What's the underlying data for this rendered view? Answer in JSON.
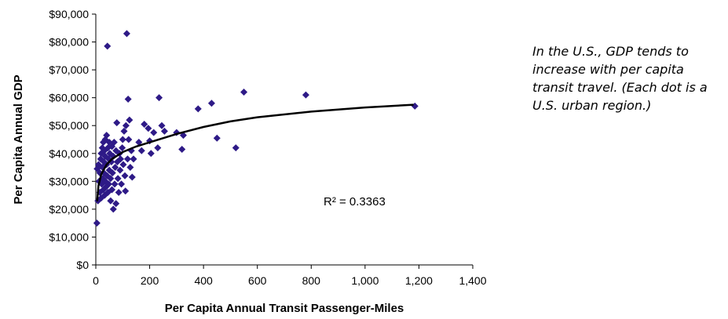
{
  "chart_data": {
    "type": "scatter",
    "xlabel": "Per Capita Annual Transit Passenger-Miles",
    "ylabel": "Per Capita Annual GDP",
    "xlim": [
      0,
      1400
    ],
    "ylim": [
      0,
      90000
    ],
    "x_ticks": [
      "0",
      "200",
      "400",
      "600",
      "800",
      "1,000",
      "1,200",
      "1,400"
    ],
    "y_ticks": [
      "$0",
      "$10,000",
      "$20,000",
      "$30,000",
      "$40,000",
      "$50,000",
      "$60,000",
      "$70,000",
      "$80,000",
      "$90,000"
    ],
    "grid": false,
    "marker_color": "#2E1A87",
    "trendline": {
      "type": "logarithmic",
      "x": [
        5,
        10,
        20,
        40,
        60,
        100,
        150,
        200,
        300,
        400,
        500,
        600,
        800,
        1000,
        1180
      ],
      "y": [
        22800,
        28500,
        32500,
        36000,
        38000,
        40500,
        42500,
        44000,
        47000,
        49500,
        51500,
        53000,
        55000,
        56500,
        57500
      ]
    },
    "r2_label": "R² = 0.3363",
    "points": [
      {
        "x": 4,
        "y": 15000
      },
      {
        "x": 8,
        "y": 23000
      },
      {
        "x": 5,
        "y": 34500
      },
      {
        "x": 10,
        "y": 36000
      },
      {
        "x": 12,
        "y": 30000
      },
      {
        "x": 15,
        "y": 26000
      },
      {
        "x": 15,
        "y": 33000
      },
      {
        "x": 18,
        "y": 38000
      },
      {
        "x": 20,
        "y": 40000
      },
      {
        "x": 20,
        "y": 24000
      },
      {
        "x": 22,
        "y": 29000
      },
      {
        "x": 24,
        "y": 42000
      },
      {
        "x": 25,
        "y": 35000
      },
      {
        "x": 26,
        "y": 31000
      },
      {
        "x": 28,
        "y": 44000
      },
      {
        "x": 28,
        "y": 27000
      },
      {
        "x": 30,
        "y": 37000
      },
      {
        "x": 30,
        "y": 33000
      },
      {
        "x": 32,
        "y": 41000
      },
      {
        "x": 33,
        "y": 25000
      },
      {
        "x": 35,
        "y": 45000
      },
      {
        "x": 35,
        "y": 39000
      },
      {
        "x": 36,
        "y": 30000
      },
      {
        "x": 38,
        "y": 28000
      },
      {
        "x": 40,
        "y": 46500
      },
      {
        "x": 40,
        "y": 36000
      },
      {
        "x": 42,
        "y": 32000
      },
      {
        "x": 43,
        "y": 78500
      },
      {
        "x": 45,
        "y": 42000
      },
      {
        "x": 45,
        "y": 26000
      },
      {
        "x": 48,
        "y": 38000
      },
      {
        "x": 48,
        "y": 29000
      },
      {
        "x": 50,
        "y": 44000
      },
      {
        "x": 50,
        "y": 34000
      },
      {
        "x": 52,
        "y": 40000
      },
      {
        "x": 55,
        "y": 31000
      },
      {
        "x": 55,
        "y": 23000
      },
      {
        "x": 58,
        "y": 37000
      },
      {
        "x": 60,
        "y": 42500
      },
      {
        "x": 60,
        "y": 27000
      },
      {
        "x": 62,
        "y": 33000
      },
      {
        "x": 65,
        "y": 39000
      },
      {
        "x": 65,
        "y": 20000
      },
      {
        "x": 68,
        "y": 44000
      },
      {
        "x": 70,
        "y": 29000
      },
      {
        "x": 72,
        "y": 35000
      },
      {
        "x": 75,
        "y": 41000
      },
      {
        "x": 75,
        "y": 22000
      },
      {
        "x": 78,
        "y": 51000
      },
      {
        "x": 80,
        "y": 37000
      },
      {
        "x": 82,
        "y": 31000
      },
      {
        "x": 85,
        "y": 26000
      },
      {
        "x": 88,
        "y": 40000
      },
      {
        "x": 90,
        "y": 34000
      },
      {
        "x": 92,
        "y": 38000
      },
      {
        "x": 95,
        "y": 29000
      },
      {
        "x": 98,
        "y": 42000
      },
      {
        "x": 100,
        "y": 45000
      },
      {
        "x": 102,
        "y": 36000
      },
      {
        "x": 105,
        "y": 48000
      },
      {
        "x": 108,
        "y": 32000
      },
      {
        "x": 110,
        "y": 26500
      },
      {
        "x": 112,
        "y": 50000
      },
      {
        "x": 115,
        "y": 83000
      },
      {
        "x": 118,
        "y": 38000
      },
      {
        "x": 120,
        "y": 59500
      },
      {
        "x": 122,
        "y": 45000
      },
      {
        "x": 125,
        "y": 52000
      },
      {
        "x": 128,
        "y": 35000
      },
      {
        "x": 132,
        "y": 41000
      },
      {
        "x": 135,
        "y": 31500
      },
      {
        "x": 140,
        "y": 38000
      },
      {
        "x": 160,
        "y": 44000
      },
      {
        "x": 170,
        "y": 41000
      },
      {
        "x": 180,
        "y": 50500
      },
      {
        "x": 195,
        "y": 49000
      },
      {
        "x": 200,
        "y": 44500
      },
      {
        "x": 205,
        "y": 40000
      },
      {
        "x": 215,
        "y": 47500
      },
      {
        "x": 230,
        "y": 42000
      },
      {
        "x": 235,
        "y": 60000
      },
      {
        "x": 245,
        "y": 50000
      },
      {
        "x": 255,
        "y": 48000
      },
      {
        "x": 300,
        "y": 47500
      },
      {
        "x": 320,
        "y": 41500
      },
      {
        "x": 325,
        "y": 46500
      },
      {
        "x": 380,
        "y": 56000
      },
      {
        "x": 430,
        "y": 58000
      },
      {
        "x": 450,
        "y": 45500
      },
      {
        "x": 520,
        "y": 42000
      },
      {
        "x": 550,
        "y": 62000
      },
      {
        "x": 780,
        "y": 61000
      },
      {
        "x": 1185,
        "y": 57000
      }
    ]
  },
  "annotation": {
    "text": "In the U.S., GDP tends to increase with per capita transit travel. (Each dot is a U.S. urban region.)"
  }
}
